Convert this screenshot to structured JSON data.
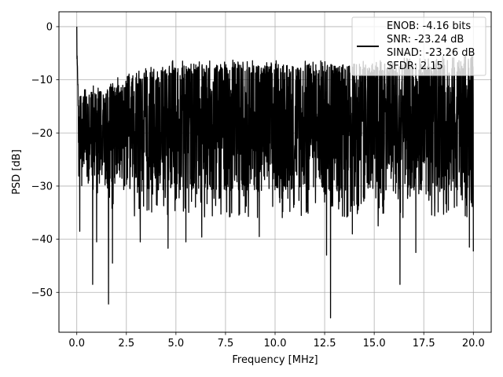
{
  "chart_data": {
    "type": "line",
    "title": "",
    "xlabel": "Frequency [MHz]",
    "ylabel": "PSD [dB]",
    "xlim": [
      -0.9,
      20.9
    ],
    "ylim": [
      -57.5,
      2.8
    ],
    "x_ticks": [
      0.0,
      2.5,
      5.0,
      7.5,
      10.0,
      12.5,
      15.0,
      17.5,
      20.0
    ],
    "x_tick_labels": [
      "0.0",
      "2.5",
      "5.0",
      "7.5",
      "10.0",
      "12.5",
      "15.0",
      "17.5",
      "20.0"
    ],
    "y_ticks": [
      0,
      -10,
      -20,
      -30,
      -40,
      -50
    ],
    "y_tick_labels": [
      "0",
      "−10",
      "−20",
      "−30",
      "−40",
      "−50"
    ],
    "grid": true,
    "legend": {
      "placement": "upper-right",
      "entries": [
        "ENOB: -4.16 bits",
        "SNR: -23.24 dB",
        "SINAD: -23.26 dB",
        "SFDR: 2.15"
      ]
    },
    "series": [
      {
        "color": "#000000",
        "x_range": [
          0.0,
          20.0
        ],
        "num_points": 2400,
        "dc_peak": {
          "x": 0.0,
          "y": 0.0
        },
        "envelope": [
          {
            "x": 0.0,
            "top": -14,
            "bottom": -30
          },
          {
            "x": 2.5,
            "top": -10,
            "bottom": -36
          },
          {
            "x": 5.0,
            "top": -7,
            "bottom": -36
          },
          {
            "x": 10.0,
            "top": -7,
            "bottom": -36
          },
          {
            "x": 15.0,
            "top": -7,
            "bottom": -36
          },
          {
            "x": 20.0,
            "top": -6,
            "bottom": -36
          }
        ],
        "deep_nulls": [
          {
            "x": 0.15,
            "y": -38.5
          },
          {
            "x": 0.8,
            "y": -48.5
          },
          {
            "x": 1.0,
            "y": -40.5
          },
          {
            "x": 1.6,
            "y": -52.2
          },
          {
            "x": 1.8,
            "y": -44.5
          },
          {
            "x": 3.2,
            "y": -40.5
          },
          {
            "x": 4.6,
            "y": -41.7
          },
          {
            "x": 5.5,
            "y": -40.5
          },
          {
            "x": 6.3,
            "y": -39.6
          },
          {
            "x": 9.2,
            "y": -39.5
          },
          {
            "x": 12.6,
            "y": -43.0
          },
          {
            "x": 12.8,
            "y": -54.8
          },
          {
            "x": 13.9,
            "y": -39.0
          },
          {
            "x": 15.2,
            "y": -37.5
          },
          {
            "x": 16.3,
            "y": -48.5
          },
          {
            "x": 17.1,
            "y": -42.5
          },
          {
            "x": 19.8,
            "y": -41.5
          },
          {
            "x": 20.0,
            "y": -42.3
          }
        ]
      }
    ]
  }
}
